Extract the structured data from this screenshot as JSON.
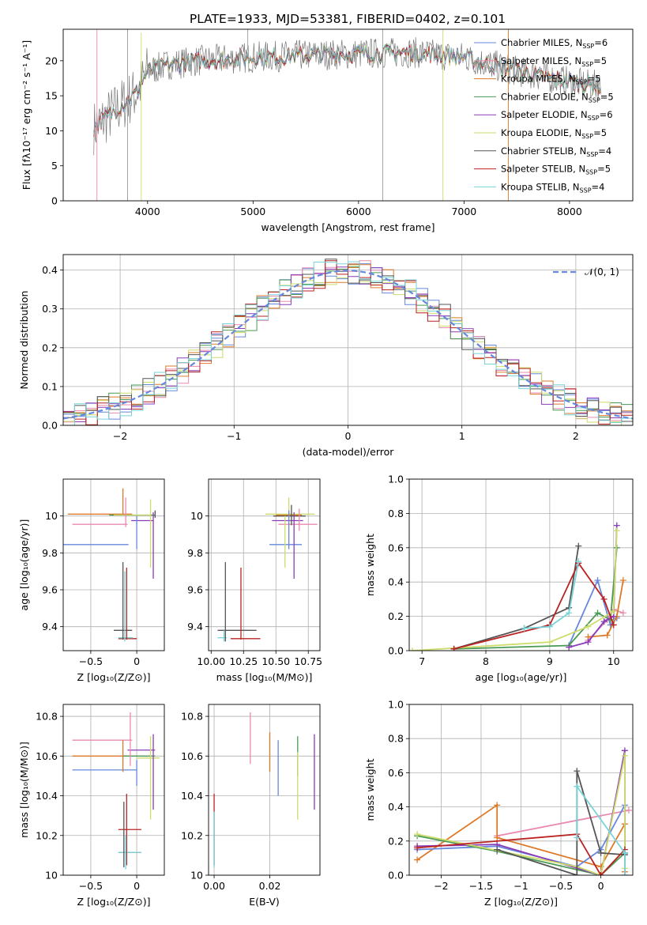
{
  "figure_title": "PLATE=1933, MJD=53381, FIBERID=0402, z=0.101",
  "model_colors": [
    "#6688dd",
    "#e98ab0",
    "#dd7a2a",
    "#4a9a55",
    "#8a3cb8",
    "#cddc6a",
    "#555555",
    "#bb2222",
    "#77d4d8"
  ],
  "chart_data": [
    {
      "id": "spectrum",
      "type": "line",
      "title": "PLATE=1933, MJD=53381, FIBERID=0402, z=0.101",
      "xlabel": "wavelength [Angstrom, rest frame]",
      "ylabel": "Flux [fλ10⁻¹⁷ erg cm⁻² s⁻¹ A⁻¹]",
      "xlim": [
        3200,
        8600
      ],
      "ylim": [
        0,
        24.5
      ],
      "xticks": [
        4000,
        5000,
        6000,
        7000,
        8000
      ],
      "yticks": [
        0,
        5,
        10,
        15,
        20
      ],
      "grid": false,
      "legend_position": "right",
      "series": [
        {
          "name": "Chabrier MILES, N_SSP=6",
          "color": "#6688dd"
        },
        {
          "name": "Salpeter MILES, N_SSP=5",
          "color": "#e98ab0"
        },
        {
          "name": "Kroupa MILES, N_SSP=5",
          "color": "#dd7a2a"
        },
        {
          "name": "Chabrier ELODIE, N_SSP=5",
          "color": "#4a9a55"
        },
        {
          "name": "Salpeter ELODIE, N_SSP=6",
          "color": "#8a3cb8"
        },
        {
          "name": "Kroupa ELODIE, N_SSP=5",
          "color": "#cddc6a"
        },
        {
          "name": "Chabrier STELIB, N_SSP=4",
          "color": "#555555"
        },
        {
          "name": "Salpeter STELIB, N_SSP=5",
          "color": "#bb2222"
        },
        {
          "name": "Kroupa STELIB, N_SSP=4",
          "color": "#77d4d8"
        }
      ],
      "continuum": {
        "x": [
          3500,
          3700,
          3900,
          4000,
          4200,
          4500,
          5000,
          5500,
          6000,
          6500,
          7000,
          7500,
          8000,
          8200
        ],
        "y": [
          10.5,
          13,
          15.5,
          18.5,
          19.5,
          20,
          20.5,
          20.8,
          21,
          21.2,
          20.5,
          18.5,
          17,
          16.5
        ]
      }
    },
    {
      "id": "residuals",
      "type": "line",
      "xlabel": "(data-model)/error",
      "ylabel": "Normed distribution",
      "xlim": [
        -2.5,
        2.5
      ],
      "ylim": [
        0,
        0.44
      ],
      "xticks": [
        -2,
        -1,
        0,
        1,
        2
      ],
      "yticks": [
        0.0,
        0.1,
        0.2,
        0.3,
        0.4
      ],
      "grid": true,
      "legend": {
        "label": "𝒩(0, 1)",
        "position": "top-right",
        "color": "#6688dd",
        "dashed": true
      }
    },
    {
      "id": "age-vs-Z",
      "type": "scatter",
      "xlabel": "Z [log₁₀(Z/Z⊙)]",
      "ylabel": "age  [log₁₀(age/yr)]",
      "xlim": [
        -0.8,
        0.3
      ],
      "ylim": [
        9.27,
        10.2
      ],
      "xticks": [
        -0.5,
        0.0
      ],
      "yticks": [
        9.4,
        9.6,
        9.8,
        10.0
      ],
      "grid": true,
      "points": [
        {
          "x": -0.45,
          "y": 9.845,
          "xerr": 0.36,
          "yerr": 0.0,
          "color": "#6688dd"
        },
        {
          "x": -0.4,
          "y": 9.955,
          "xerr": 0.3,
          "yerr": 0.0,
          "color": "#e98ab0"
        },
        {
          "x": -0.4,
          "y": 10.01,
          "xerr": 0.35,
          "yerr": 0.0,
          "color": "#dd7a2a"
        },
        {
          "x": -0.05,
          "y": 10.005,
          "xerr": 0.25,
          "yerr": 0.0,
          "color": "#4a9a55"
        },
        {
          "x": 0.06,
          "y": 9.975,
          "xerr": 0.12,
          "yerr": 0.0,
          "color": "#8a3cb8"
        },
        {
          "x": -0.05,
          "y": 10.005,
          "xerr": 0.2,
          "yerr": 0.0,
          "color": "#cddc6a"
        },
        {
          "x": -0.15,
          "y": 9.38,
          "xerr": 0.1,
          "yerr": 0.0,
          "color": "#555555"
        },
        {
          "x": -0.1,
          "y": 9.335,
          "xerr": 0.1,
          "yerr": 0.0,
          "color": "#bb2222"
        },
        {
          "x": -0.12,
          "y": 9.34,
          "xerr": 0.08,
          "yerr": 0.0,
          "color": "#77d4d8"
        }
      ],
      "vlines": [
        {
          "x": -0.15,
          "y0": 10.01,
          "y1": 10.15,
          "color": "#dd7a2a"
        },
        {
          "x": -0.12,
          "y0": 9.94,
          "y1": 10.1,
          "color": "#e98ab0"
        },
        {
          "x": 0.0,
          "y0": 9.82,
          "y1": 10.0,
          "color": "#6688dd"
        },
        {
          "x": 0.15,
          "y0": 9.72,
          "y1": 10.09,
          "color": "#cddc6a"
        },
        {
          "x": 0.18,
          "y0": 9.66,
          "y1": 10.02,
          "color": "#8a3cb8"
        },
        {
          "x": 0.2,
          "y0": 9.99,
          "y1": 10.03,
          "color": "#555555"
        },
        {
          "x": -0.15,
          "y0": 9.33,
          "y1": 9.75,
          "color": "#555555"
        },
        {
          "x": -0.11,
          "y0": 9.33,
          "y1": 9.72,
          "color": "#bb2222"
        },
        {
          "x": -0.13,
          "y0": 9.32,
          "y1": 9.7,
          "color": "#77d4d8"
        }
      ]
    },
    {
      "id": "age-vs-mass",
      "type": "scatter",
      "xlabel": "mass [log₁₀(M/M⊙)]",
      "ylabel": "",
      "xlim": [
        9.98,
        10.84
      ],
      "ylim": [
        9.27,
        10.2
      ],
      "xticks": [
        10.0,
        10.25,
        10.5,
        10.75
      ],
      "xticklabels": [
        "10.00",
        "10.25",
        "10.50",
        "10.75"
      ],
      "yticks": [
        9.4,
        9.6,
        9.8,
        10.0
      ],
      "grid": true,
      "hlines": [
        {
          "y": 10.01,
          "x0": 10.42,
          "x1": 10.8,
          "color": "#cddc6a"
        },
        {
          "y": 10.0,
          "x0": 10.48,
          "x1": 10.73,
          "color": "#555555"
        },
        {
          "y": 10.005,
          "x0": 10.5,
          "x1": 10.7,
          "color": "#dd7a2a"
        },
        {
          "y": 9.975,
          "x0": 10.47,
          "x1": 10.71,
          "color": "#8a3cb8"
        },
        {
          "y": 9.955,
          "x0": 10.52,
          "x1": 10.82,
          "color": "#e98ab0"
        },
        {
          "y": 9.845,
          "x0": 10.45,
          "x1": 10.7,
          "color": "#6688dd"
        },
        {
          "y": 9.38,
          "x0": 10.05,
          "x1": 10.35,
          "color": "#555555"
        },
        {
          "y": 9.335,
          "x0": 10.15,
          "x1": 10.38,
          "color": "#bb2222"
        },
        {
          "y": 9.34,
          "x0": 10.05,
          "x1": 10.12,
          "color": "#77d4d8"
        }
      ],
      "vlines": [
        {
          "x": 10.6,
          "y0": 9.97,
          "y1": 10.1,
          "color": "#cddc6a"
        },
        {
          "x": 10.62,
          "y0": 9.95,
          "y1": 10.06,
          "color": "#555555"
        },
        {
          "x": 10.6,
          "y0": 9.82,
          "y1": 10.03,
          "color": "#6688dd"
        },
        {
          "x": 10.57,
          "y0": 9.72,
          "y1": 10.0,
          "color": "#cddc6a"
        },
        {
          "x": 10.64,
          "y0": 9.66,
          "y1": 10.02,
          "color": "#8a3cb8"
        },
        {
          "x": 10.68,
          "y0": 9.92,
          "y1": 10.04,
          "color": "#e98ab0"
        },
        {
          "x": 10.11,
          "y0": 9.32,
          "y1": 9.75,
          "color": "#555555"
        },
        {
          "x": 10.23,
          "y0": 9.33,
          "y1": 9.72,
          "color": "#bb2222"
        },
        {
          "x": 10.1,
          "y0": 9.32,
          "y1": 9.38,
          "color": "#77d4d8"
        }
      ]
    },
    {
      "id": "mass-weight-vs-age",
      "type": "line",
      "xlabel": "age  [log₁₀(age/yr)]",
      "ylabel": "mass weight",
      "xlim": [
        6.8,
        10.3
      ],
      "ylim": [
        0,
        1.0
      ],
      "xticks": [
        7,
        8,
        9,
        10
      ],
      "yticks": [
        0.0,
        0.2,
        0.4,
        0.6,
        0.8,
        1.0
      ],
      "grid": true,
      "series": [
        {
          "color": "#6688dd",
          "x": [
            9.3,
            9.75,
            9.95,
            10.05
          ],
          "y": [
            0.03,
            0.41,
            0.15,
            0.19
          ]
        },
        {
          "color": "#e98ab0",
          "x": [
            9.6,
            9.9,
            10.0,
            10.15
          ],
          "y": [
            0.06,
            0.18,
            0.24,
            0.22
          ]
        },
        {
          "color": "#dd7a2a",
          "x": [
            9.6,
            9.9,
            10.05,
            10.15
          ],
          "y": [
            0.08,
            0.09,
            0.2,
            0.41
          ]
        },
        {
          "color": "#4a9a55",
          "x": [
            7.5,
            9.3,
            9.75,
            9.95,
            10.05
          ],
          "y": [
            0.01,
            0.03,
            0.22,
            0.18,
            0.6
          ]
        },
        {
          "color": "#8a3cb8",
          "x": [
            9.3,
            9.6,
            9.85,
            10.0,
            10.05
          ],
          "y": [
            0.02,
            0.05,
            0.17,
            0.2,
            0.73
          ]
        },
        {
          "color": "#cddc6a",
          "x": [
            6.85,
            9.0,
            9.6,
            10.0,
            10.05
          ],
          "y": [
            0.0,
            0.05,
            0.14,
            0.23,
            0.7
          ]
        },
        {
          "color": "#555555",
          "x": [
            7.5,
            8.6,
            9.3,
            9.45
          ],
          "y": [
            0.01,
            0.13,
            0.25,
            0.61
          ]
        },
        {
          "color": "#bb2222",
          "x": [
            7.5,
            9.0,
            9.45,
            9.85,
            10.0
          ],
          "y": [
            0.01,
            0.15,
            0.51,
            0.3,
            0.15
          ]
        },
        {
          "color": "#77d4d8",
          "x": [
            8.6,
            9.0,
            9.3,
            9.45
          ],
          "y": [
            0.13,
            0.14,
            0.22,
            0.52
          ]
        }
      ]
    },
    {
      "id": "mass-vs-Z",
      "type": "scatter",
      "xlabel": "Z [log₁₀(Z/Z⊙)]",
      "ylabel": "mass [log₁₀(M/M⊙)]",
      "xlim": [
        -0.8,
        0.3
      ],
      "ylim": [
        10.0,
        10.86
      ],
      "xticks": [
        -0.5,
        0.0
      ],
      "yticks": [
        10.0,
        10.2,
        10.4,
        10.6,
        10.8
      ],
      "grid": true,
      "hlines": [
        {
          "y": 10.68,
          "x0": -0.7,
          "x1": -0.05,
          "color": "#e98ab0"
        },
        {
          "y": 10.6,
          "x0": -0.7,
          "x1": -0.05,
          "color": "#dd7a2a"
        },
        {
          "y": 10.53,
          "x0": -0.7,
          "x1": 0.0,
          "color": "#6688dd"
        },
        {
          "y": 10.63,
          "x0": -0.1,
          "x1": 0.2,
          "color": "#8a3cb8"
        },
        {
          "y": 10.6,
          "x0": -0.15,
          "x1": 0.2,
          "color": "#4a9a55"
        },
        {
          "y": 10.59,
          "x0": 0.0,
          "x1": 0.25,
          "color": "#cddc6a"
        },
        {
          "y": 10.23,
          "x0": -0.2,
          "x1": 0.05,
          "color": "#bb2222"
        },
        {
          "y": 10.115,
          "x0": -0.2,
          "x1": 0.05,
          "color": "#555555"
        },
        {
          "y": 10.115,
          "x0": -0.2,
          "x1": 0.05,
          "color": "#77d4d8"
        }
      ],
      "vlines": [
        {
          "x": -0.07,
          "y0": 10.55,
          "y1": 10.82,
          "color": "#e98ab0"
        },
        {
          "x": -0.15,
          "y0": 10.52,
          "y1": 10.68,
          "color": "#dd7a2a"
        },
        {
          "x": 0.0,
          "y0": 10.45,
          "y1": 10.58,
          "color": "#6688dd"
        },
        {
          "x": 0.15,
          "y0": 10.28,
          "y1": 10.7,
          "color": "#cddc6a"
        },
        {
          "x": 0.18,
          "y0": 10.33,
          "y1": 10.71,
          "color": "#8a3cb8"
        },
        {
          "x": -0.11,
          "y0": 10.05,
          "y1": 10.41,
          "color": "#bb2222"
        },
        {
          "x": -0.14,
          "y0": 10.04,
          "y1": 10.37,
          "color": "#555555"
        },
        {
          "x": -0.12,
          "y0": 10.03,
          "y1": 10.2,
          "color": "#77d4d8"
        }
      ]
    },
    {
      "id": "mass-vs-EBV",
      "type": "scatter",
      "xlabel": "E(B-V)",
      "ylabel": "",
      "xlim": [
        -0.002,
        0.038
      ],
      "ylim": [
        10.0,
        10.86
      ],
      "xticks": [
        0.0,
        0.02
      ],
      "xticklabels": [
        "0.00",
        "0.02"
      ],
      "yticks": [
        10.0,
        10.2,
        10.4,
        10.6,
        10.8
      ],
      "grid": true,
      "vlines": [
        {
          "x": 0.0,
          "y0": 10.05,
          "y1": 10.41,
          "color": "#bb2222"
        },
        {
          "x": 0.0,
          "y0": 10.04,
          "y1": 10.32,
          "color": "#77d4d8"
        },
        {
          "x": 0.013,
          "y0": 10.56,
          "y1": 10.82,
          "color": "#e98ab0"
        },
        {
          "x": 0.02,
          "y0": 10.52,
          "y1": 10.72,
          "color": "#dd7a2a"
        },
        {
          "x": 0.023,
          "y0": 10.4,
          "y1": 10.68,
          "color": "#6688dd"
        },
        {
          "x": 0.03,
          "y0": 10.5,
          "y1": 10.7,
          "color": "#4a9a55"
        },
        {
          "x": 0.03,
          "y0": 10.28,
          "y1": 10.62,
          "color": "#cddc6a"
        },
        {
          "x": 0.036,
          "y0": 10.33,
          "y1": 10.71,
          "color": "#8a3cb8"
        }
      ]
    },
    {
      "id": "mass-weight-vs-Z",
      "type": "line",
      "xlabel": "Z [log₁₀(Z/Z⊙)]",
      "ylabel": "mass weight",
      "xlim": [
        -2.4,
        0.4
      ],
      "ylim": [
        0,
        1.0
      ],
      "xticks": [
        -2.0,
        -1.5,
        -1.0,
        -0.5,
        0.0
      ],
      "yticks": [
        0.0,
        0.2,
        0.4,
        0.6,
        0.8,
        1.0
      ],
      "grid": true,
      "series": [
        {
          "color": "#e98ab0",
          "x": [
            -1.3,
            0.35
          ],
          "y": [
            0.23,
            0.38
          ]
        },
        {
          "color": "#dd7a2a",
          "x": [
            -2.3,
            -1.3,
            -1.3,
            0.0,
            0.3,
            0.3
          ],
          "y": [
            0.09,
            0.41,
            0.22,
            0.05,
            0.3,
            0.02
          ]
        },
        {
          "color": "#6688dd",
          "x": [
            -2.3,
            -1.3,
            -0.3,
            0.0,
            0.3,
            0.3
          ],
          "y": [
            0.15,
            0.17,
            0.05,
            0.15,
            0.41,
            0.13
          ]
        },
        {
          "color": "#4a9a55",
          "x": [
            -2.3,
            -1.3,
            0.0,
            0.3
          ],
          "y": [
            0.23,
            0.14,
            0.0,
            0.13
          ]
        },
        {
          "color": "#8a3cb8",
          "x": [
            -2.3,
            -1.3,
            0.0,
            0.3,
            0.3
          ],
          "y": [
            0.17,
            0.18,
            0.0,
            0.73,
            0.0
          ]
        },
        {
          "color": "#cddc6a",
          "x": [
            -2.3,
            -0.3,
            0.0,
            0.3,
            0.3
          ],
          "y": [
            0.24,
            0.05,
            0.0,
            0.7,
            0.04
          ]
        },
        {
          "color": "#555555",
          "x": [
            -1.3,
            -0.3,
            -0.3,
            0.0,
            0.3
          ],
          "y": [
            0.15,
            0.0,
            0.61,
            0.13,
            0.12
          ]
        },
        {
          "color": "#bb2222",
          "x": [
            -2.3,
            -0.3,
            0.0,
            0.3
          ],
          "y": [
            0.16,
            0.24,
            0.0,
            0.15
          ]
        },
        {
          "color": "#77d4d8",
          "x": [
            -0.3,
            -0.3,
            0.3,
            0.3
          ],
          "y": [
            0.22,
            0.52,
            0.13,
            0.0
          ]
        }
      ]
    }
  ]
}
